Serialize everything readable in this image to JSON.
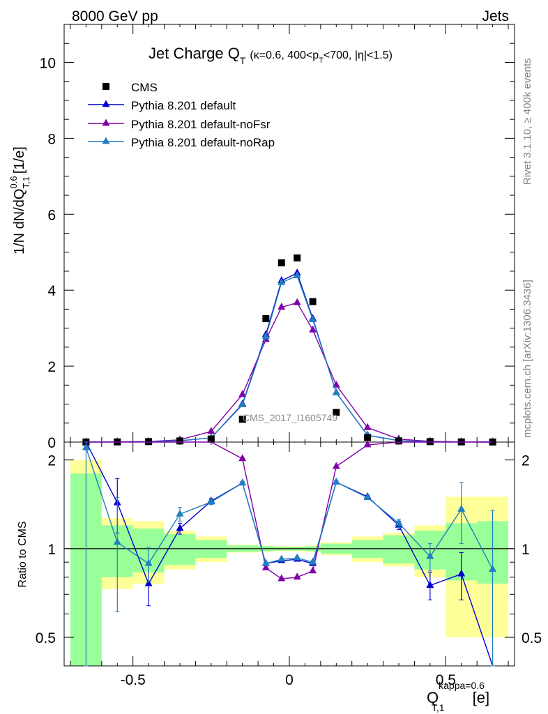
{
  "header": {
    "energy": "8000 GeV pp",
    "category": "Jets",
    "rivet_note": "Rivet 3.1.10, ≥ 400k events",
    "source_note": "mcplots.cern.ch [arXiv:1306.3436]"
  },
  "chart_data": {
    "type": "scatter",
    "title_main": "Jet Charge Q",
    "title_sub": "T",
    "title_cond_1": "(κ=0.6, 400<p",
    "title_cond_2": "T",
    "title_cond_3": "<700, |η|<1.5)",
    "ylabel": "1/N dN/dQ",
    "ylabel_sup": "0.6",
    "ylabel_sub": "T,1",
    "ylabel_unit": "[1/e]",
    "ratio_ylabel": "Ratio to CMS",
    "xlabel": "Q",
    "xlabel_sub": "T,1",
    "xlabel_sup": "kappa=0.6",
    "xlabel_unit": "[e]",
    "watermark": "CMS_2017_I1605749",
    "xlim": [
      -0.72,
      0.72
    ],
    "ylim": [
      0,
      11
    ],
    "ratio_ylim": [
      0.4,
      2.3
    ],
    "x_ticks": [
      "-0.5",
      "0",
      "0.5"
    ],
    "y_ticks": [
      "0",
      "2",
      "4",
      "6",
      "8",
      "10"
    ],
    "ratio_ticks": [
      "0.5",
      "1",
      "2"
    ],
    "legend_position": "top-left",
    "cms_color": "#000000",
    "colors": {
      "default": "#0000cc",
      "noFsr": "#7f00a8",
      "noRap": "#1f7fbf",
      "band_inner": "#99ff99",
      "band_outer": "#ffff99"
    },
    "bins": [
      {
        "lo": -0.7,
        "hi": -0.6
      },
      {
        "lo": -0.6,
        "hi": -0.5
      },
      {
        "lo": -0.5,
        "hi": -0.4
      },
      {
        "lo": -0.4,
        "hi": -0.3
      },
      {
        "lo": -0.3,
        "hi": -0.2
      },
      {
        "lo": -0.2,
        "hi": -0.1
      },
      {
        "lo": -0.1,
        "hi": -0.05
      },
      {
        "lo": -0.05,
        "hi": 0.0
      },
      {
        "lo": 0.0,
        "hi": 0.05
      },
      {
        "lo": 0.05,
        "hi": 0.1
      },
      {
        "lo": 0.1,
        "hi": 0.2
      },
      {
        "lo": 0.2,
        "hi": 0.3
      },
      {
        "lo": 0.3,
        "hi": 0.4
      },
      {
        "lo": 0.4,
        "hi": 0.5
      },
      {
        "lo": 0.5,
        "hi": 0.6
      },
      {
        "lo": 0.6,
        "hi": 0.7
      }
    ],
    "cms": {
      "name": "CMS",
      "x": [
        -0.65,
        -0.55,
        -0.45,
        -0.35,
        -0.25,
        -0.15,
        -0.075,
        -0.025,
        0.025,
        0.075,
        0.15,
        0.25,
        0.35,
        0.45,
        0.55,
        0.65
      ],
      "y": [
        0.0015,
        0.004,
        0.012,
        0.03,
        0.08,
        0.6,
        3.25,
        4.72,
        4.85,
        3.7,
        0.78,
        0.12,
        0.03,
        0.012,
        0.004,
        0.0015
      ],
      "band_stat": [
        0.8,
        0.2,
        0.17,
        0.12,
        0.07,
        0.025,
        0.02,
        0.015,
        0.015,
        0.02,
        0.04,
        0.07,
        0.11,
        0.15,
        0.22,
        0.24
      ],
      "band_total": [
        1.0,
        0.27,
        0.24,
        0.15,
        0.1,
        0.03,
        0.025,
        0.02,
        0.02,
        0.025,
        0.05,
        0.1,
        0.13,
        0.2,
        0.5,
        0.5
      ]
    },
    "series": [
      {
        "name": "Pythia 8.201 default",
        "color_key": "default",
        "y": [
          0.0015,
          0.0055,
          0.0092,
          0.034,
          0.11,
          1.0,
          2.83,
          4.25,
          4.45,
          3.25,
          1.3,
          0.18,
          0.038,
          0.009,
          0.0033,
          0.0003
        ],
        "ratio": [
          3.0,
          1.43,
          0.76,
          1.17,
          1.45,
          1.67,
          0.89,
          0.91,
          0.92,
          0.89,
          1.68,
          1.5,
          1.2,
          0.75,
          0.82,
          0.3
        ],
        "ratio_err": [
          0,
          0.3,
          0.12,
          0.05,
          0.03,
          0.02,
          0.01,
          0.01,
          0.01,
          0.01,
          0.02,
          0.02,
          0.04,
          0.08,
          0.15,
          0
        ]
      },
      {
        "name": "Pythia 8.201 default-noFsr",
        "color_key": "noFsr",
        "y": [
          0.002,
          0.006,
          0.015,
          0.06,
          0.28,
          1.25,
          2.7,
          3.55,
          3.67,
          2.95,
          1.5,
          0.38,
          0.08,
          0.02,
          0.006,
          0.002
        ],
        "ratio": [
          3.0,
          3.0,
          3.0,
          3.0,
          3.0,
          2.02,
          0.86,
          0.79,
          0.8,
          0.84,
          1.9,
          2.25,
          3.0,
          3.0,
          3.0,
          3.0
        ],
        "ratio_err": [
          0,
          0,
          0,
          0,
          0,
          0,
          0,
          0,
          0,
          0,
          0,
          0,
          0,
          0,
          0,
          0
        ]
      },
      {
        "name": "Pythia 8.201 default-noRap",
        "color_key": "noRap",
        "y": [
          0.004,
          0.0045,
          0.011,
          0.038,
          0.11,
          0.98,
          2.78,
          4.2,
          4.38,
          3.22,
          1.3,
          0.18,
          0.036,
          0.011,
          0.0055,
          0.0013
        ],
        "ratio": [
          2.2,
          1.05,
          0.89,
          1.31,
          1.44,
          1.67,
          0.89,
          0.92,
          0.93,
          0.9,
          1.68,
          1.49,
          1.22,
          0.94,
          1.36,
          0.85
        ],
        "ratio_err": [
          1.8,
          0.44,
          0.12,
          0.07,
          0.03,
          0.02,
          0.01,
          0.01,
          0.01,
          0.01,
          0.02,
          0.02,
          0.04,
          0.1,
          0.32,
          0.5
        ]
      }
    ]
  }
}
